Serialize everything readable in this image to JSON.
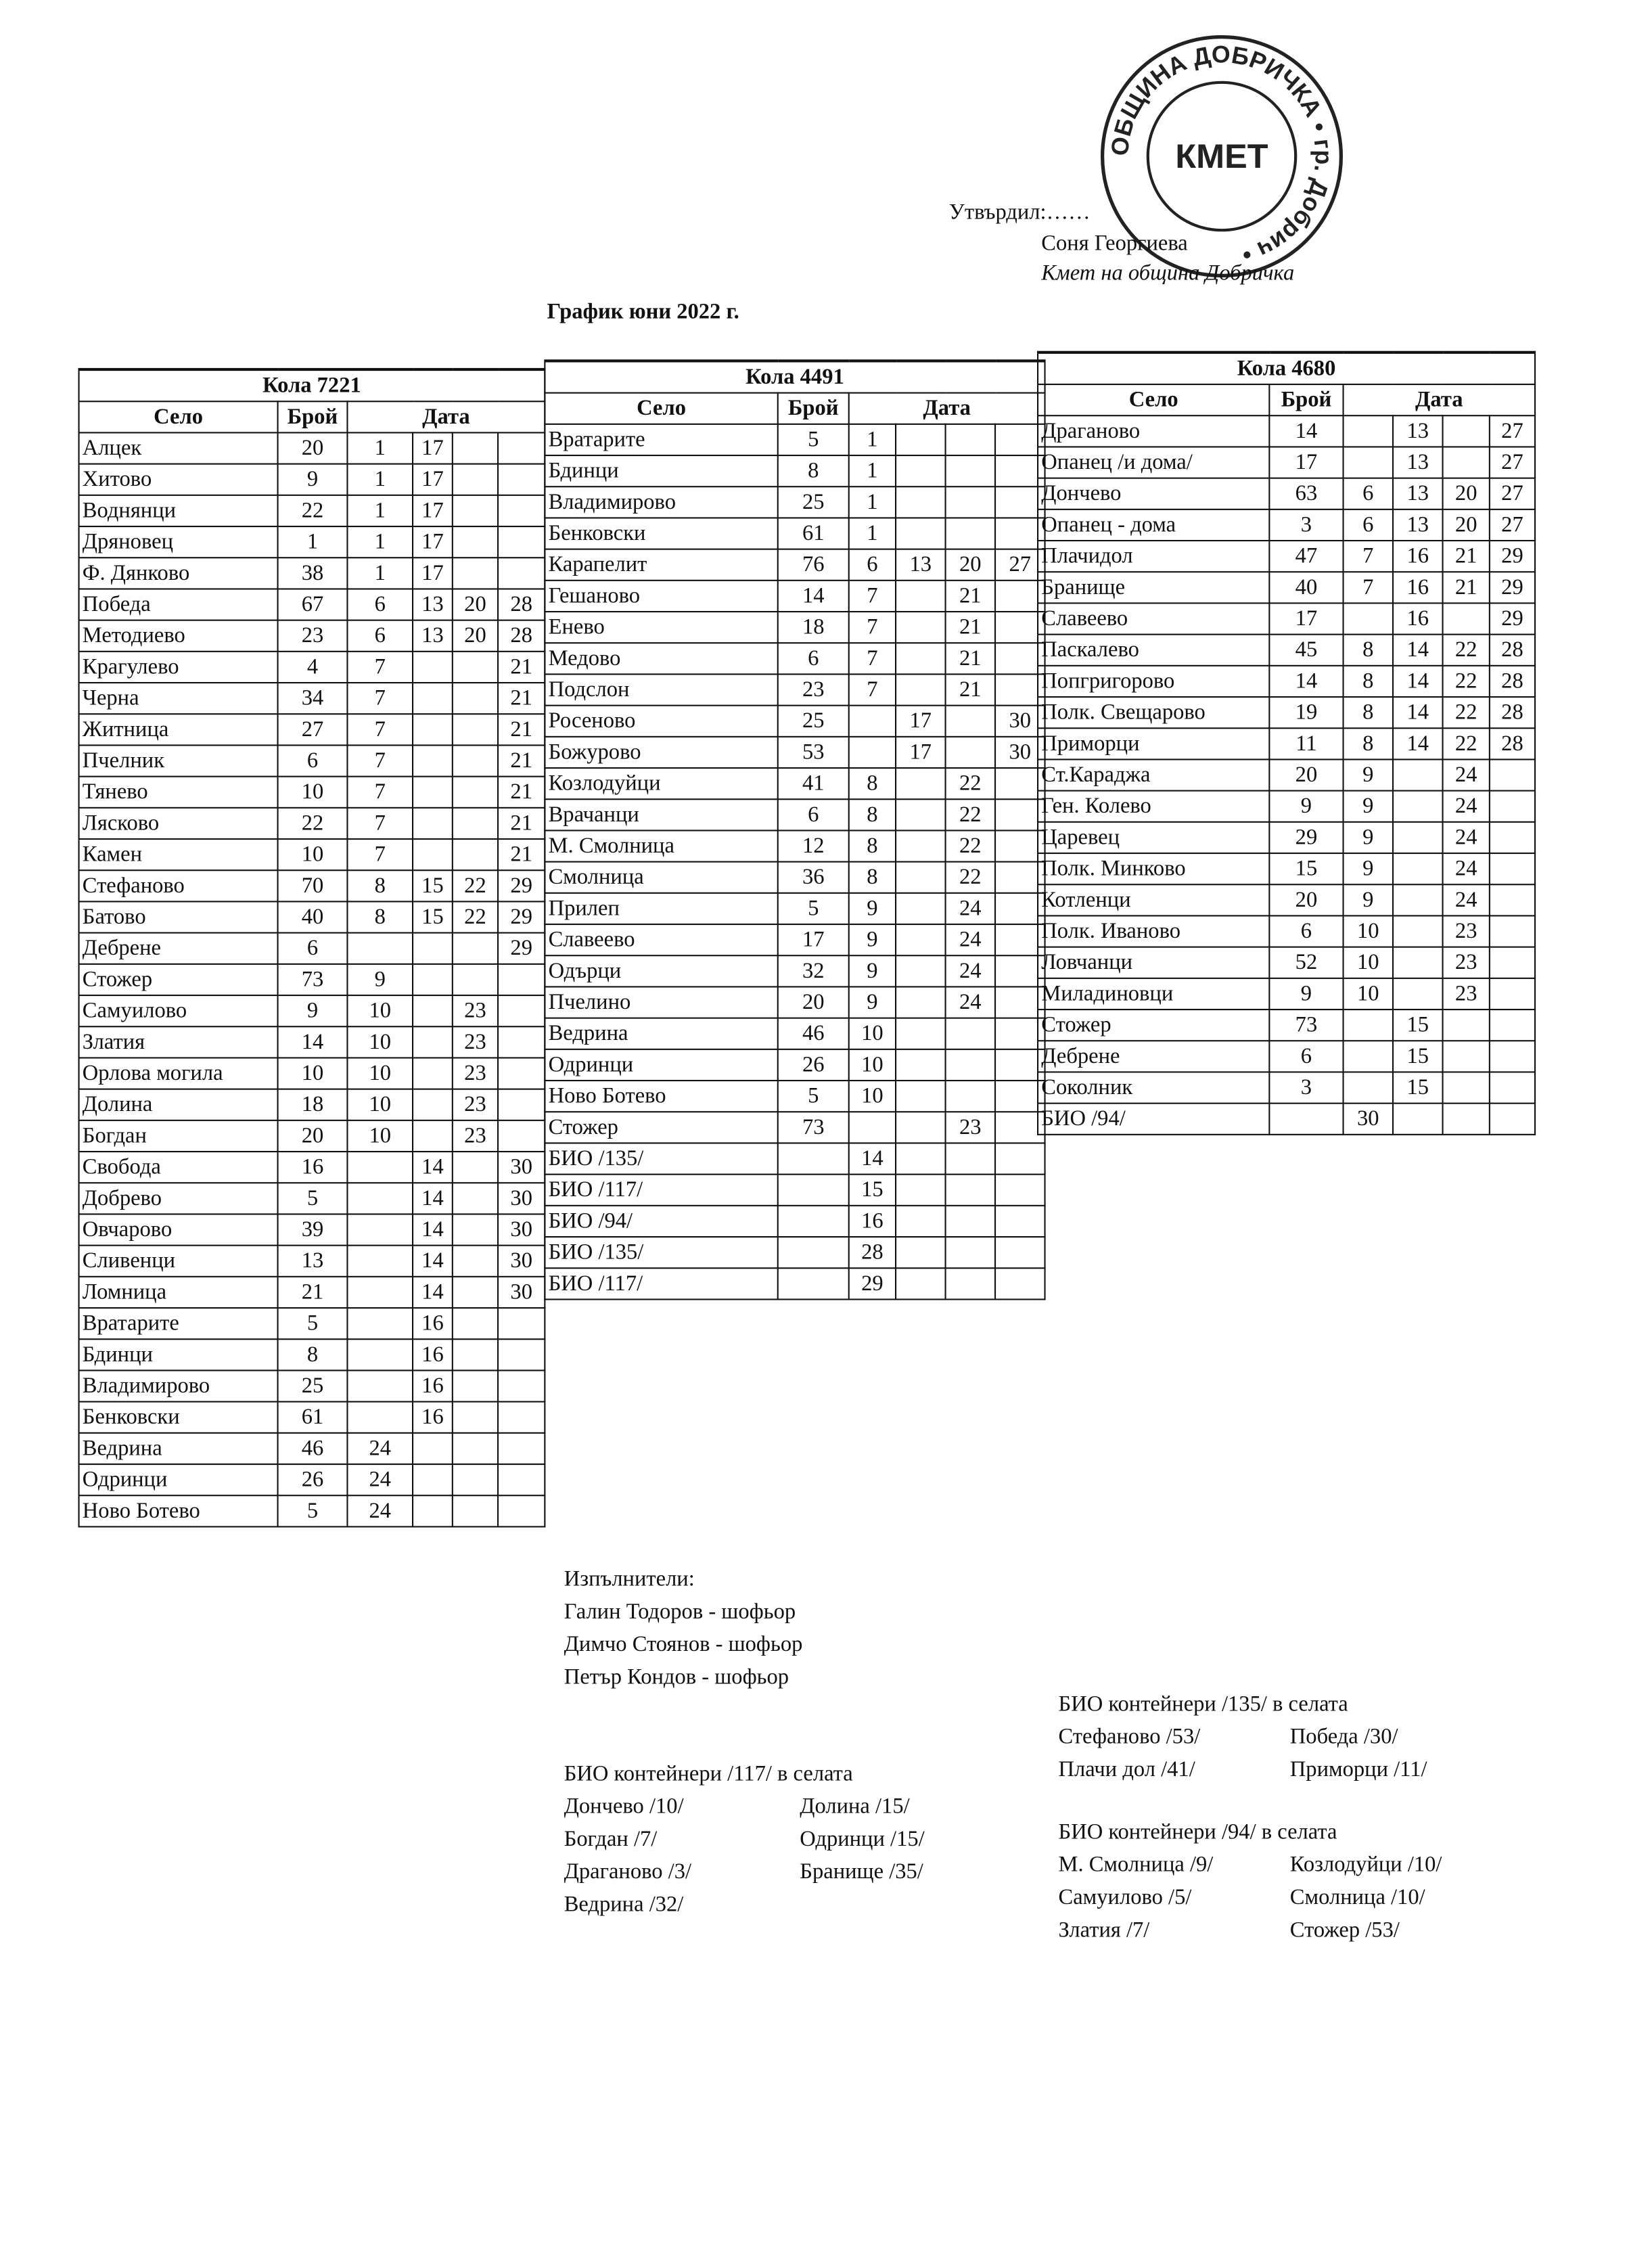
{
  "header": {
    "approved": "Утвърдил:……",
    "name": "Соня Георгиева",
    "position": "Кмет на община Добричка",
    "stamp_ring": "ОБЩИНА ДОБРИЧКА • гр. Добрич •",
    "stamp_center": "КМЕТ"
  },
  "title": "График юни 2022 г.",
  "tables": [
    {
      "title": "Кола 7221",
      "headers": [
        "Село",
        "Брой",
        "Дата"
      ],
      "rows": [
        [
          "Алцек",
          20,
          1,
          17,
          null,
          null
        ],
        [
          "Хитово",
          9,
          1,
          17,
          null,
          null
        ],
        [
          "Воднянци",
          22,
          1,
          17,
          null,
          null
        ],
        [
          "Дряновец",
          1,
          1,
          17,
          null,
          null
        ],
        [
          "Ф. Дянково",
          38,
          1,
          17,
          null,
          null
        ],
        [
          "Победа",
          67,
          6,
          13,
          20,
          28
        ],
        [
          "Методиево",
          23,
          6,
          13,
          20,
          28
        ],
        [
          "Крагулево",
          4,
          7,
          null,
          null,
          21
        ],
        [
          "Черна",
          34,
          7,
          null,
          null,
          21
        ],
        [
          "Житница",
          27,
          7,
          null,
          null,
          21
        ],
        [
          "Пчелник",
          6,
          7,
          null,
          null,
          21
        ],
        [
          "Тянево",
          10,
          7,
          null,
          null,
          21
        ],
        [
          "Лясково",
          22,
          7,
          null,
          null,
          21
        ],
        [
          "Камен",
          10,
          7,
          null,
          null,
          21
        ],
        [
          "Стефаново",
          70,
          8,
          15,
          22,
          29
        ],
        [
          "Батово",
          40,
          8,
          15,
          22,
          29
        ],
        [
          "Дебрене",
          6,
          null,
          null,
          null,
          29
        ],
        [
          "Стожер",
          73,
          9,
          null,
          null,
          null
        ],
        [
          "Самуилово",
          9,
          10,
          null,
          23,
          null
        ],
        [
          "Златия",
          14,
          10,
          null,
          23,
          null
        ],
        [
          "Орлова могила",
          10,
          10,
          null,
          23,
          null
        ],
        [
          "Долина",
          18,
          10,
          null,
          23,
          null
        ],
        [
          "Богдан",
          20,
          10,
          null,
          23,
          null
        ],
        [
          "Свобода",
          16,
          null,
          14,
          null,
          30
        ],
        [
          "Добрево",
          5,
          null,
          14,
          null,
          30
        ],
        [
          "Овчарово",
          39,
          null,
          14,
          null,
          30
        ],
        [
          "Сливенци",
          13,
          null,
          14,
          null,
          30
        ],
        [
          "Ломница",
          21,
          null,
          14,
          null,
          30
        ],
        [
          "Вратарите",
          5,
          null,
          16,
          null,
          null
        ],
        [
          "Бдинци",
          8,
          null,
          16,
          null,
          null
        ],
        [
          "Владимирово",
          25,
          null,
          16,
          null,
          null
        ],
        [
          "Бенковски",
          61,
          null,
          16,
          null,
          null
        ],
        [
          "Ведрина",
          46,
          24,
          null,
          null,
          null
        ],
        [
          "Одринци",
          26,
          24,
          null,
          null,
          null
        ],
        [
          "Ново Ботево",
          5,
          24,
          null,
          null,
          null
        ]
      ]
    },
    {
      "title": "Кола 4491",
      "headers": [
        "Село",
        "Брой",
        "Дата"
      ],
      "rows": [
        [
          "Вратарите",
          5,
          1,
          null,
          null,
          null
        ],
        [
          "Бдинци",
          8,
          1,
          null,
          null,
          null
        ],
        [
          "Владимирово",
          25,
          1,
          null,
          null,
          null
        ],
        [
          "Бенковски",
          61,
          1,
          null,
          null,
          null
        ],
        [
          "Карапелит",
          76,
          6,
          13,
          20,
          27
        ],
        [
          "Гешаново",
          14,
          7,
          null,
          21,
          null
        ],
        [
          "Енево",
          18,
          7,
          null,
          21,
          null
        ],
        [
          "Медово",
          6,
          7,
          null,
          21,
          null
        ],
        [
          "Подслон",
          23,
          7,
          null,
          21,
          null
        ],
        [
          "Росеново",
          25,
          null,
          17,
          null,
          30
        ],
        [
          "Божурово",
          53,
          null,
          17,
          null,
          30
        ],
        [
          "Козлодуйци",
          41,
          8,
          null,
          22,
          null
        ],
        [
          "Врачанци",
          6,
          8,
          null,
          22,
          null
        ],
        [
          "М. Смолница",
          12,
          8,
          null,
          22,
          null
        ],
        [
          "Смолница",
          36,
          8,
          null,
          22,
          null
        ],
        [
          "Прилеп",
          5,
          9,
          null,
          24,
          null
        ],
        [
          "Славеево",
          17,
          9,
          null,
          24,
          null
        ],
        [
          "Одърци",
          32,
          9,
          null,
          24,
          null
        ],
        [
          "Пчелино",
          20,
          9,
          null,
          24,
          null
        ],
        [
          "Ведрина",
          46,
          10,
          null,
          null,
          null
        ],
        [
          "Одринци",
          26,
          10,
          null,
          null,
          null
        ],
        [
          "Ново Ботево",
          5,
          10,
          null,
          null,
          null
        ],
        [
          "Стожер",
          73,
          null,
          null,
          23,
          null
        ],
        [
          "БИО /135/",
          null,
          14,
          null,
          null,
          null
        ],
        [
          "БИО /117/",
          null,
          15,
          null,
          null,
          null
        ],
        [
          "БИО /94/",
          null,
          16,
          null,
          null,
          null
        ],
        [
          "БИО /135/",
          null,
          28,
          null,
          null,
          null
        ],
        [
          "БИО /117/",
          null,
          29,
          null,
          null,
          null
        ]
      ]
    },
    {
      "title": "Кола 4680",
      "headers": [
        "Село",
        "Брой",
        "Дата"
      ],
      "rows": [
        [
          "Драганово",
          14,
          null,
          13,
          null,
          27
        ],
        [
          "Опанец /и дома/",
          17,
          null,
          13,
          null,
          27
        ],
        [
          "Дончево",
          63,
          6,
          13,
          20,
          27
        ],
        [
          "Опанец - дома",
          3,
          6,
          13,
          20,
          27
        ],
        [
          "Плачидол",
          47,
          7,
          16,
          21,
          29
        ],
        [
          "Бранище",
          40,
          7,
          16,
          21,
          29
        ],
        [
          "Славеево",
          17,
          null,
          16,
          null,
          29
        ],
        [
          "Паскалево",
          45,
          8,
          14,
          22,
          28
        ],
        [
          "Попгригорово",
          14,
          8,
          14,
          22,
          28
        ],
        [
          "Полк. Свещарово",
          19,
          8,
          14,
          22,
          28
        ],
        [
          "Приморци",
          11,
          8,
          14,
          22,
          28
        ],
        [
          "Ст.Караджа",
          20,
          9,
          null,
          24,
          null
        ],
        [
          "Ген. Колево",
          9,
          9,
          null,
          24,
          null
        ],
        [
          "Царевец",
          29,
          9,
          null,
          24,
          null
        ],
        [
          "Полк. Минково",
          15,
          9,
          null,
          24,
          null
        ],
        [
          "Котленци",
          20,
          9,
          null,
          24,
          null
        ],
        [
          "Полк. Иваново",
          6,
          10,
          null,
          23,
          null
        ],
        [
          "Ловчанци",
          52,
          10,
          null,
          23,
          null
        ],
        [
          "Миладиновци",
          9,
          10,
          null,
          23,
          null
        ],
        [
          "Стожер",
          73,
          null,
          15,
          null,
          null
        ],
        [
          "Дебрене",
          6,
          null,
          15,
          null,
          null
        ],
        [
          "Соколник",
          3,
          null,
          15,
          null,
          null
        ],
        [
          "БИО /94/",
          null,
          30,
          null,
          null,
          null
        ]
      ]
    }
  ],
  "executors": {
    "title": "Изпълнители:",
    "names": [
      "Галин Тодоров - шофьор",
      "Димчо Стоянов - шофьор",
      "Петър Кондов - шофьор"
    ]
  },
  "bio": [
    {
      "title": "БИО контейнери /117/ в селата",
      "items": [
        "Дончево /10/",
        "Долина /15/",
        "Богдан /7/",
        "Одринци /15/",
        "Драганово /3/",
        "Бранище /35/",
        "Ведрина /32/"
      ]
    },
    {
      "title": "БИО контейнери /135/ в селата",
      "items": [
        "Стефаново /53/",
        "Победа /30/",
        "Плачи дол /41/",
        "Приморци /11/"
      ]
    },
    {
      "title": "БИО контейнери /94/ в селата",
      "items": [
        "М. Смолница /9/",
        "Козлодуйци /10/",
        "Самуилово /5/",
        "Смолница /10/",
        "Златия /7/",
        "Стожер /53/"
      ]
    }
  ]
}
